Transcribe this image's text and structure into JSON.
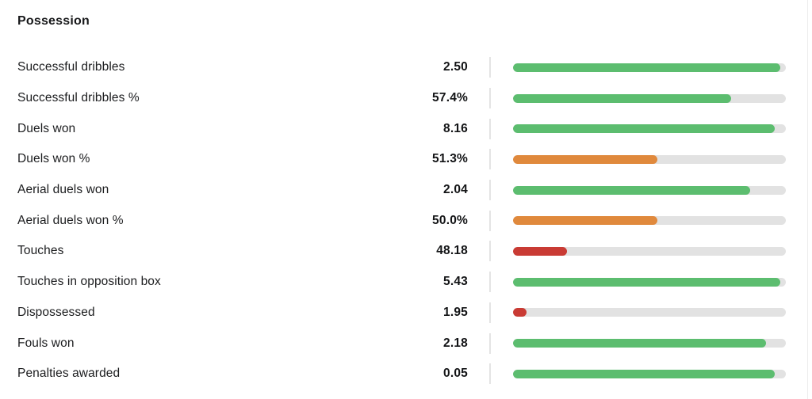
{
  "panel": {
    "title": "Possession"
  },
  "colors": {
    "green": "#5cbd6f",
    "orange": "#e0893c",
    "red": "#c93b34",
    "track": "#e2e2e2",
    "divider": "#e4e4e4"
  },
  "chart_data": {
    "type": "bar",
    "orientation": "horizontal",
    "title": "Possession",
    "bar_range": [
      0,
      100
    ],
    "legend": "none",
    "rows": [
      {
        "label": "Successful dribbles",
        "value": "2.50",
        "fill_percent": 98,
        "color": "green"
      },
      {
        "label": "Successful dribbles %",
        "value": "57.4%",
        "fill_percent": 80,
        "color": "green"
      },
      {
        "label": "Duels won",
        "value": "8.16",
        "fill_percent": 96,
        "color": "green"
      },
      {
        "label": "Duels won %",
        "value": "51.3%",
        "fill_percent": 53,
        "color": "orange"
      },
      {
        "label": "Aerial duels won",
        "value": "2.04",
        "fill_percent": 87,
        "color": "green"
      },
      {
        "label": "Aerial duels won %",
        "value": "50.0%",
        "fill_percent": 53,
        "color": "orange"
      },
      {
        "label": "Touches",
        "value": "48.18",
        "fill_percent": 20,
        "color": "red"
      },
      {
        "label": "Touches in opposition box",
        "value": "5.43",
        "fill_percent": 98,
        "color": "green"
      },
      {
        "label": "Dispossessed",
        "value": "1.95",
        "fill_percent": 5,
        "color": "red"
      },
      {
        "label": "Fouls won",
        "value": "2.18",
        "fill_percent": 93,
        "color": "green"
      },
      {
        "label": "Penalties awarded",
        "value": "0.05",
        "fill_percent": 96,
        "color": "green"
      }
    ]
  }
}
